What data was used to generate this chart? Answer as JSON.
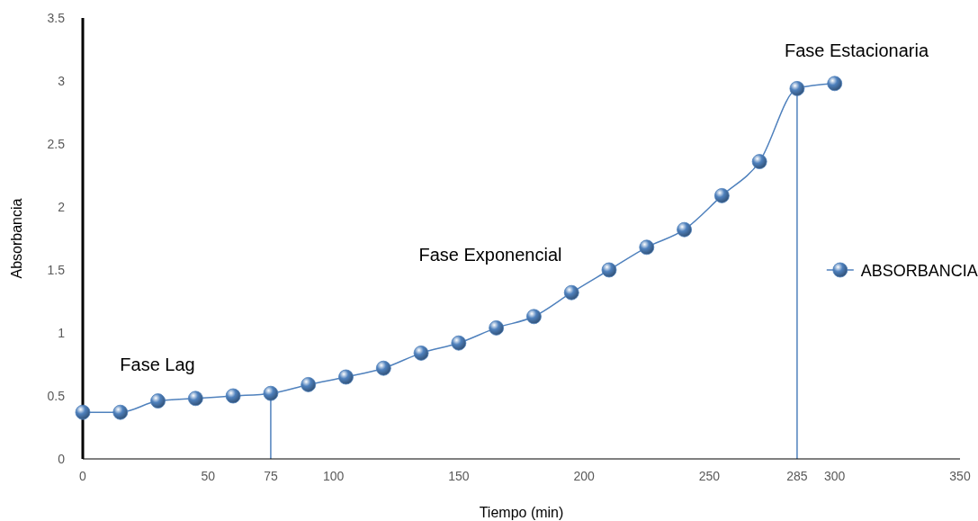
{
  "chart_data": {
    "type": "line",
    "xlabel": "Tiempo (min)",
    "ylabel": "Absorbancia",
    "x": [
      0,
      15,
      30,
      45,
      60,
      75,
      90,
      105,
      120,
      135,
      150,
      165,
      180,
      195,
      210,
      225,
      240,
      255,
      270,
      285,
      300
    ],
    "series": [
      {
        "name": "ABSORBANCIA",
        "color": "#4f81bd",
        "values": [
          0.37,
          0.37,
          0.46,
          0.48,
          0.5,
          0.52,
          0.59,
          0.65,
          0.72,
          0.84,
          0.92,
          1.04,
          1.13,
          1.32,
          1.5,
          1.68,
          1.82,
          2.09,
          2.36,
          2.94,
          2.98
        ]
      }
    ],
    "xlim": [
      0,
      350
    ],
    "xticks": [
      0,
      50,
      75,
      100,
      150,
      200,
      250,
      285,
      300,
      350
    ],
    "ylim": [
      0,
      3.5
    ],
    "yticks": [
      0,
      0.5,
      1,
      1.5,
      2,
      2.5,
      3,
      3.5
    ],
    "ref_lines": [
      {
        "axis": "x",
        "value": 75,
        "color": "#4f81bd"
      },
      {
        "axis": "x",
        "value": 285,
        "color": "#4f81bd"
      }
    ],
    "annotations": [
      "Fase Lag",
      "Fase Exponencial",
      "Fase Estacionaria"
    ],
    "marker": "circle",
    "line_style": "solid",
    "grid": false,
    "legend": "right"
  }
}
